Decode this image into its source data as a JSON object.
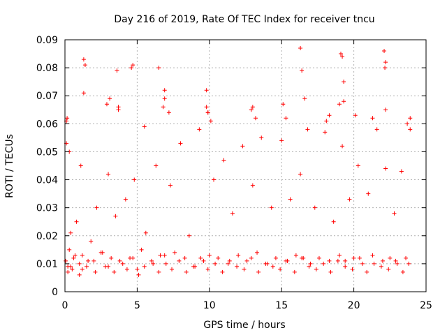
{
  "chart_data": {
    "type": "scatter",
    "title": "Day 216 of 2019, Rate Of TEC Index for receiver tncu",
    "xlabel": "GPS time / hours",
    "ylabel": "ROTI / TECUs",
    "xlim": [
      0,
      25
    ],
    "ylim": [
      0,
      0.09
    ],
    "xticks": [
      0,
      5,
      10,
      15,
      20,
      25
    ],
    "xtick_labels": [
      "0",
      "5",
      "10",
      "15",
      "20",
      "25"
    ],
    "yticks": [
      0,
      0.01,
      0.02,
      0.03,
      0.04,
      0.05,
      0.06,
      0.07,
      0.08,
      0.09
    ],
    "ytick_labels": [
      "0",
      "0.01",
      "0.02",
      "0.03",
      "0.04",
      "0.05",
      "0.06",
      "0.07",
      "0.08",
      "0.09"
    ],
    "grid": true,
    "marker": "+",
    "color": "#ff0000",
    "series": [
      {
        "name": "ROTI",
        "x": [
          0.05,
          0.1,
          0.15,
          0.2,
          0.3,
          0.4,
          0.5,
          0.6,
          0.8,
          1.0,
          1.1,
          1.2,
          1.3,
          1.5,
          1.8,
          2.0,
          2.2,
          2.5,
          2.8,
          3.0,
          3.2,
          3.5,
          3.7,
          4.0,
          4.2,
          4.5,
          4.8,
          5.0,
          5.3,
          5.6,
          6.0,
          6.3,
          6.6,
          6.8,
          7.0,
          7.3,
          7.6,
          8.0,
          8.3,
          8.6,
          9.0,
          9.3,
          9.6,
          9.8,
          10.0,
          10.3,
          10.6,
          11.0,
          11.3,
          11.6,
          12.0,
          12.3,
          12.6,
          13.0,
          13.3,
          13.6,
          14.0,
          14.3,
          14.6,
          15.0,
          15.3,
          15.6,
          16.0,
          16.3,
          16.5,
          16.8,
          17.0,
          17.3,
          17.6,
          18.0,
          18.3,
          18.6,
          19.0,
          19.2,
          19.4,
          19.7,
          20.0,
          20.3,
          20.6,
          21.0,
          21.3,
          21.6,
          22.0,
          22.2,
          22.5,
          22.8,
          23.0,
          23.3,
          23.6,
          23.9,
          0.2,
          0.4,
          0.7,
          1.0,
          1.2,
          1.6,
          2.1,
          2.6,
          3.0,
          3.4,
          3.8,
          4.3,
          4.7,
          5.1,
          5.5,
          6.1,
          6.5,
          6.9,
          7.4,
          7.9,
          8.4,
          8.9,
          9.4,
          9.9,
          10.4,
          10.9,
          11.4,
          11.9,
          12.4,
          12.9,
          13.4,
          13.9,
          14.4,
          14.9,
          15.4,
          15.9,
          16.4,
          16.9,
          17.4,
          17.9,
          18.4,
          18.9,
          19.4,
          19.9,
          20.4,
          20.9,
          21.4,
          21.9,
          22.4,
          22.9,
          23.4,
          23.8,
          1.3,
          1.4,
          3.6,
          4.6,
          4.7,
          6.5,
          6.9,
          9.8,
          9.9,
          13.0,
          16.3,
          16.4,
          19.1,
          19.2,
          19.3,
          22.1,
          22.2,
          22.15,
          0.1,
          0.3,
          2.9,
          3.1,
          3.7,
          5.5,
          6.9,
          7.2,
          9.9,
          10.1,
          12.9,
          13.2,
          15.1,
          15.3,
          16.6,
          18.1,
          18.3,
          19.0,
          19.3,
          20.1,
          21.3,
          22.2,
          23.7,
          23.9
        ],
        "y": [
          0.011,
          0.053,
          0.062,
          0.009,
          0.015,
          0.021,
          0.008,
          0.012,
          0.025,
          0.01,
          0.045,
          0.013,
          0.071,
          0.009,
          0.018,
          0.011,
          0.03,
          0.014,
          0.009,
          0.042,
          0.012,
          0.027,
          0.065,
          0.01,
          0.033,
          0.012,
          0.04,
          0.008,
          0.015,
          0.021,
          0.011,
          0.045,
          0.013,
          0.066,
          0.01,
          0.038,
          0.014,
          0.053,
          0.012,
          0.02,
          0.009,
          0.058,
          0.011,
          0.066,
          0.013,
          0.04,
          0.012,
          0.047,
          0.01,
          0.028,
          0.013,
          0.052,
          0.011,
          0.038,
          0.014,
          0.055,
          0.01,
          0.03,
          0.012,
          0.054,
          0.011,
          0.033,
          0.013,
          0.042,
          0.012,
          0.058,
          0.01,
          0.03,
          0.012,
          0.057,
          0.011,
          0.025,
          0.013,
          0.052,
          0.011,
          0.033,
          0.012,
          0.045,
          0.01,
          0.035,
          0.013,
          0.058,
          0.011,
          0.044,
          0.012,
          0.028,
          0.01,
          0.043,
          0.012,
          0.058,
          0.007,
          0.009,
          0.013,
          0.006,
          0.008,
          0.011,
          0.007,
          0.014,
          0.009,
          0.007,
          0.011,
          0.008,
          0.012,
          0.006,
          0.009,
          0.01,
          0.007,
          0.013,
          0.008,
          0.011,
          0.007,
          0.009,
          0.012,
          0.008,
          0.01,
          0.007,
          0.011,
          0.009,
          0.008,
          0.012,
          0.007,
          0.01,
          0.009,
          0.008,
          0.011,
          0.007,
          0.012,
          0.009,
          0.008,
          0.01,
          0.007,
          0.011,
          0.009,
          0.008,
          0.012,
          0.007,
          0.01,
          0.009,
          0.008,
          0.011,
          0.007,
          0.01,
          0.083,
          0.081,
          0.079,
          0.08,
          0.081,
          0.08,
          0.072,
          0.072,
          0.064,
          0.066,
          0.087,
          0.079,
          0.085,
          0.084,
          0.075,
          0.086,
          0.082,
          0.08,
          0.061,
          0.05,
          0.067,
          0.069,
          0.066,
          0.059,
          0.069,
          0.064,
          0.064,
          0.061,
          0.065,
          0.062,
          0.067,
          0.062,
          0.069,
          0.061,
          0.063,
          0.067,
          0.068,
          0.063,
          0.062,
          0.065,
          0.06,
          0.062
        ]
      }
    ]
  }
}
